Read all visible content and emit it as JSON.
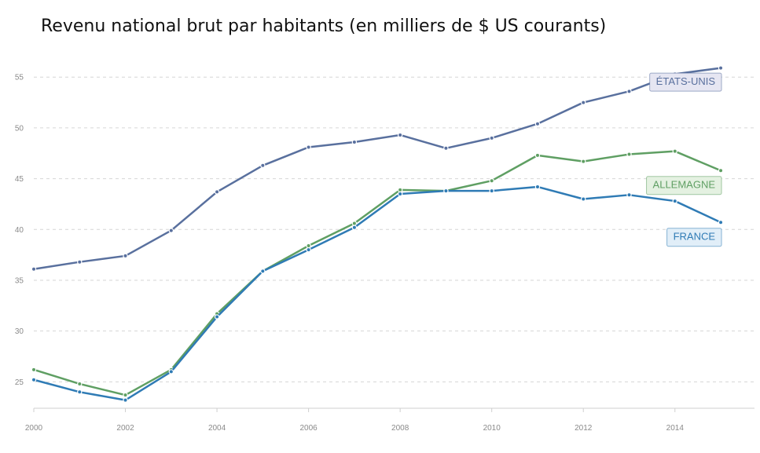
{
  "chart_data": {
    "type": "line",
    "title": "Revenu national brut par habitants (en milliers de $ US courants)",
    "xlabel": "",
    "ylabel": "",
    "x": [
      2000,
      2001,
      2002,
      2003,
      2004,
      2005,
      2006,
      2007,
      2008,
      2009,
      2010,
      2011,
      2012,
      2013,
      2014,
      2015
    ],
    "xticks": [
      2000,
      2002,
      2004,
      2006,
      2008,
      2010,
      2012,
      2014
    ],
    "yticks": [
      25,
      30,
      35,
      40,
      45,
      50,
      55
    ],
    "xlim": [
      2000,
      2015.6
    ],
    "ylim": [
      22.4,
      57.8
    ],
    "grid": true,
    "series": [
      {
        "name": "ÉTATS-UNIS",
        "color": "#59709e",
        "label_bg": "#e6e6f2",
        "values": [
          36.1,
          36.8,
          37.4,
          39.9,
          43.7,
          46.3,
          48.1,
          48.6,
          49.3,
          48.0,
          49.0,
          50.4,
          52.5,
          53.6,
          55.3,
          55.9
        ]
      },
      {
        "name": "ALLEMAGNE",
        "color": "#5f9f63",
        "label_bg": "#e4f1e1",
        "values": [
          26.2,
          24.8,
          23.7,
          26.2,
          31.7,
          35.9,
          38.4,
          40.6,
          43.9,
          43.8,
          44.8,
          47.3,
          46.7,
          47.4,
          47.7,
          45.8
        ]
      },
      {
        "name": "FRANCE",
        "color": "#2f7bb5",
        "label_bg": "#e1eef8",
        "values": [
          25.2,
          24.0,
          23.2,
          26.0,
          31.4,
          35.9,
          38.0,
          40.2,
          43.5,
          43.8,
          43.8,
          44.2,
          43.0,
          43.4,
          42.8,
          40.7
        ]
      }
    ]
  }
}
